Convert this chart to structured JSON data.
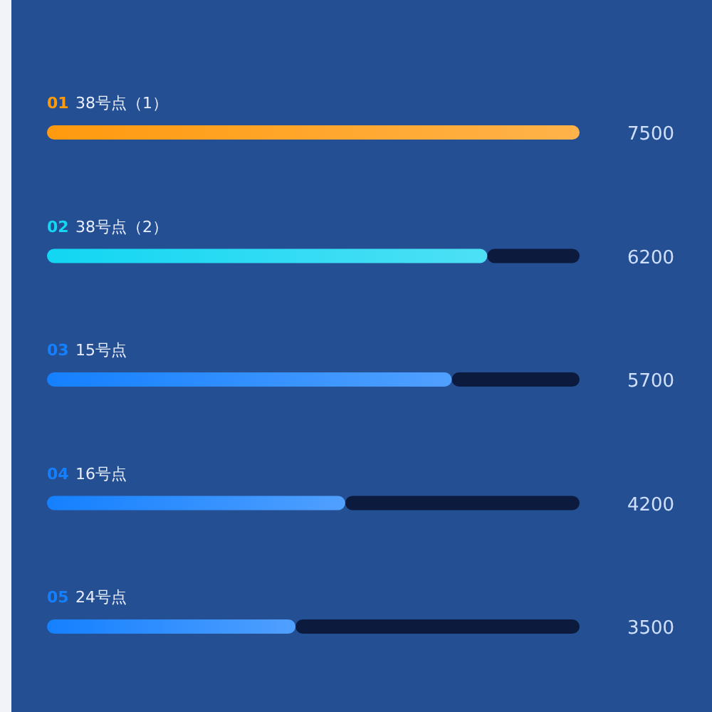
{
  "chart_data": {
    "type": "bar",
    "orientation": "horizontal",
    "categories": [
      "38号点（1）",
      "38号点（2）",
      "15号点",
      "16号点",
      "24号点"
    ],
    "series": [
      {
        "colors": [
          "#ff9a0e",
          "#12d6f2",
          "#1580ff",
          "#1580ff",
          "#1580ff"
        ],
        "values": [
          7500,
          6200,
          5700,
          4200,
          3500
        ],
        "value_labels": [
          "7500",
          "6200",
          "5700",
          "4200",
          "3500"
        ]
      },
      {
        "color": "#0b1a3d",
        "values": [
          null,
          1300,
          1800,
          3300,
          4000
        ]
      }
    ],
    "stacked": true,
    "annotations": [
      "01",
      "02",
      "03",
      "04",
      "05"
    ],
    "xlim": [
      0,
      7500
    ]
  }
}
